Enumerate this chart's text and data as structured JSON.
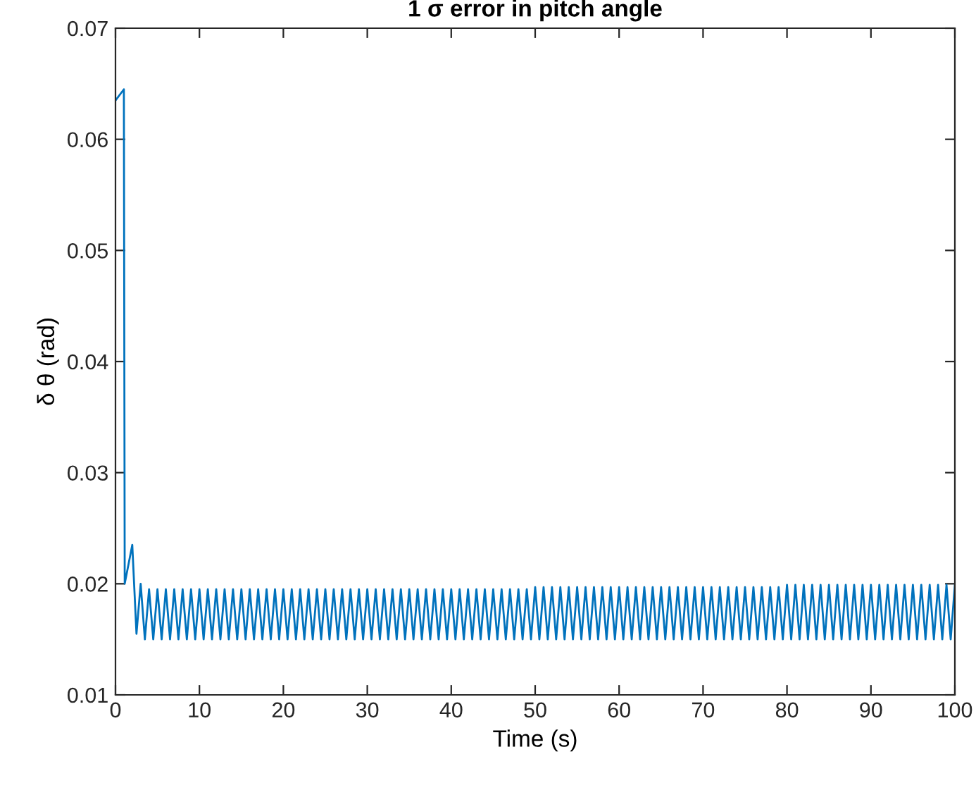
{
  "chart_data": {
    "type": "line",
    "title": "1 σ error in pitch angle",
    "xlabel": "Time (s)",
    "ylabel": "δ θ (rad)",
    "xlim": [
      0,
      100
    ],
    "xticks": [
      0,
      10,
      20,
      30,
      40,
      50,
      60,
      70,
      80,
      90,
      100
    ],
    "ylim": [
      0.01,
      0.07
    ],
    "yticks": [
      0.01,
      0.02,
      0.03,
      0.04,
      0.05,
      0.06,
      0.07
    ],
    "grid": false,
    "x": [
      0,
      1,
      1.1,
      2,
      2.5,
      3,
      3.5,
      4,
      4.5,
      5,
      5.5,
      6,
      6.5,
      7,
      7.5,
      8,
      8.5,
      9,
      9.5,
      10,
      10.5,
      11,
      11.5,
      12,
      12.5,
      13,
      13.5,
      14,
      14.5,
      15,
      15.5,
      16,
      16.5,
      17,
      17.5,
      18,
      18.5,
      19,
      19.5,
      20,
      20.5,
      21,
      21.5,
      22,
      22.5,
      23,
      23.5,
      24,
      24.5,
      25,
      25.5,
      26,
      26.5,
      27,
      27.5,
      28,
      28.5,
      29,
      29.5,
      30,
      30.5,
      31,
      31.5,
      32,
      32.5,
      33,
      33.5,
      34,
      34.5,
      35,
      35.5,
      36,
      36.5,
      37,
      37.5,
      38,
      38.5,
      39,
      39.5,
      40,
      40.5,
      41,
      41.5,
      42,
      42.5,
      43,
      43.5,
      44,
      44.5,
      45,
      45.5,
      46,
      46.5,
      47,
      47.5,
      48,
      48.5,
      49,
      49.5,
      50,
      50.5,
      51,
      51.5,
      52,
      52.5,
      53,
      53.5,
      54,
      54.5,
      55,
      55.5,
      56,
      56.5,
      57,
      57.5,
      58,
      58.5,
      59,
      59.5,
      60,
      60.5,
      61,
      61.5,
      62,
      62.5,
      63,
      63.5,
      64,
      64.5,
      65,
      65.5,
      66,
      66.5,
      67,
      67.5,
      68,
      68.5,
      69,
      69.5,
      70,
      70.5,
      71,
      71.5,
      72,
      72.5,
      73,
      73.5,
      74,
      74.5,
      75,
      75.5,
      76,
      76.5,
      77,
      77.5,
      78,
      78.5,
      79,
      79.5,
      80,
      80.5,
      81,
      81.5,
      82,
      82.5,
      83,
      83.5,
      84,
      84.5,
      85,
      85.5,
      86,
      86.5,
      87,
      87.5,
      88,
      88.5,
      89,
      89.5,
      90,
      90.5,
      91,
      91.5,
      92,
      92.5,
      93,
      93.5,
      94,
      94.5,
      95,
      95.5,
      96,
      96.5,
      97,
      97.5,
      98,
      98.5,
      99,
      99.5,
      100
    ],
    "series": [
      {
        "color": "#0072bd",
        "line_style": "solid",
        "marker": "none",
        "values": [
          0.0635,
          0.0645,
          0.02,
          0.0235,
          0.0155,
          0.02,
          0.015,
          0.0195,
          0.015,
          0.0195,
          0.015,
          0.0195,
          0.015,
          0.0195,
          0.015,
          0.0195,
          0.015,
          0.0195,
          0.015,
          0.0195,
          0.015,
          0.0195,
          0.015,
          0.0195,
          0.015,
          0.0195,
          0.015,
          0.0195,
          0.015,
          0.0195,
          0.015,
          0.0195,
          0.015,
          0.0195,
          0.015,
          0.0195,
          0.015,
          0.0195,
          0.015,
          0.0195,
          0.015,
          0.0195,
          0.015,
          0.0195,
          0.015,
          0.0195,
          0.015,
          0.0195,
          0.015,
          0.0195,
          0.015,
          0.0195,
          0.015,
          0.0195,
          0.015,
          0.0195,
          0.015,
          0.0195,
          0.015,
          0.0195,
          0.015,
          0.0195,
          0.015,
          0.0195,
          0.015,
          0.0195,
          0.015,
          0.0195,
          0.015,
          0.0195,
          0.015,
          0.0195,
          0.015,
          0.0195,
          0.015,
          0.0195,
          0.015,
          0.0195,
          0.015,
          0.0195,
          0.015,
          0.0195,
          0.015,
          0.0195,
          0.015,
          0.0195,
          0.015,
          0.0195,
          0.015,
          0.0195,
          0.015,
          0.0195,
          0.015,
          0.0195,
          0.015,
          0.0195,
          0.015,
          0.0195,
          0.015,
          0.0197,
          0.015,
          0.0197,
          0.015,
          0.0197,
          0.015,
          0.0197,
          0.015,
          0.0197,
          0.015,
          0.0197,
          0.015,
          0.0197,
          0.015,
          0.0197,
          0.015,
          0.0197,
          0.015,
          0.0197,
          0.015,
          0.0197,
          0.015,
          0.0197,
          0.015,
          0.0197,
          0.015,
          0.0197,
          0.015,
          0.0197,
          0.015,
          0.0197,
          0.015,
          0.0197,
          0.015,
          0.0197,
          0.015,
          0.0197,
          0.015,
          0.0197,
          0.015,
          0.0197,
          0.015,
          0.0197,
          0.015,
          0.0197,
          0.015,
          0.0197,
          0.015,
          0.0197,
          0.015,
          0.0197,
          0.015,
          0.0197,
          0.015,
          0.0197,
          0.015,
          0.0197,
          0.015,
          0.0197,
          0.015,
          0.0199,
          0.015,
          0.0199,
          0.015,
          0.0199,
          0.015,
          0.0199,
          0.015,
          0.0199,
          0.015,
          0.0199,
          0.015,
          0.0199,
          0.015,
          0.0199,
          0.015,
          0.0199,
          0.015,
          0.0199,
          0.015,
          0.0199,
          0.015,
          0.0199,
          0.015,
          0.0199,
          0.015,
          0.0199,
          0.015,
          0.0199,
          0.015,
          0.0199,
          0.015,
          0.0199,
          0.015,
          0.0199,
          0.015,
          0.0199,
          0.015,
          0.0199,
          0.015,
          0.0199
        ]
      }
    ]
  }
}
